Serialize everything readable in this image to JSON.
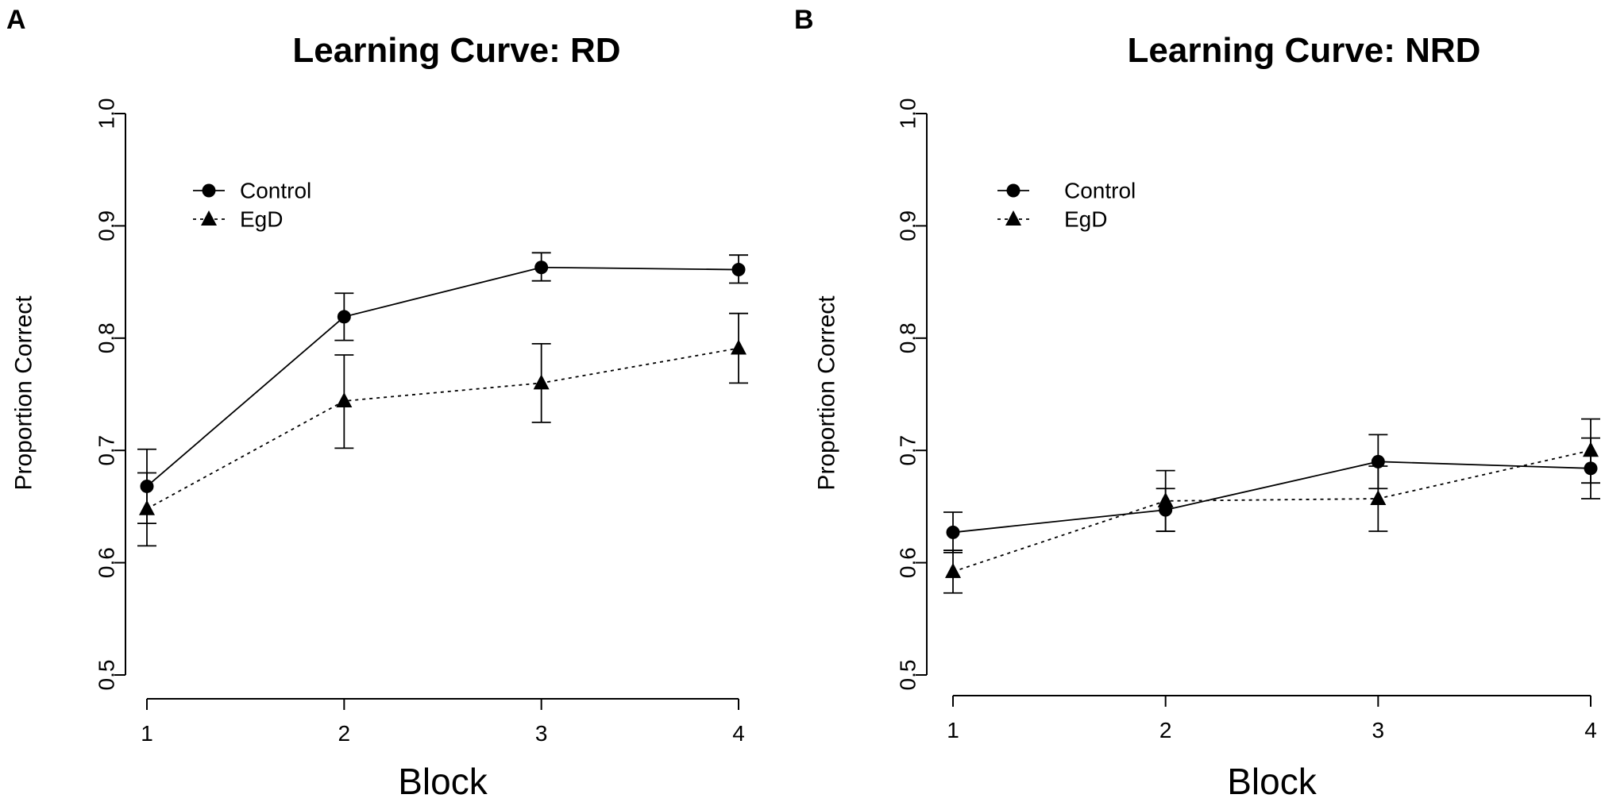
{
  "chart_data": [
    {
      "panel": "A",
      "type": "line",
      "title": "Learning Curve: RD",
      "xlabel": "Block",
      "ylabel": "Proportion Correct",
      "x": [
        1,
        2,
        3,
        4
      ],
      "x_ticks": [
        "1",
        "2",
        "3",
        "4"
      ],
      "ylim": [
        0.5,
        1.0
      ],
      "y_ticks": [
        "0.5",
        "0.6",
        "0.7",
        "0.8",
        "0.9",
        "1.0"
      ],
      "legend_position": "top-left",
      "series": [
        {
          "name": "Control",
          "marker": "circle",
          "line": "solid",
          "values": [
            0.668,
            0.819,
            0.863,
            0.861
          ],
          "err_low": [
            0.635,
            0.798,
            0.851,
            0.849
          ],
          "err_high": [
            0.701,
            0.84,
            0.876,
            0.874
          ]
        },
        {
          "name": "EgD",
          "marker": "triangle",
          "line": "dotted",
          "values": [
            0.648,
            0.744,
            0.76,
            0.791
          ],
          "err_low": [
            0.615,
            0.702,
            0.725,
            0.76
          ],
          "err_high": [
            0.68,
            0.785,
            0.795,
            0.822
          ]
        }
      ]
    },
    {
      "panel": "B",
      "type": "line",
      "title": "Learning Curve: NRD",
      "xlabel": "Block",
      "ylabel": "Proportion Correct",
      "x": [
        1,
        2,
        3,
        4
      ],
      "x_ticks": [
        "1",
        "2",
        "3",
        "4"
      ],
      "ylim": [
        0.5,
        1.0
      ],
      "y_ticks": [
        "0.5",
        "0.6",
        "0.7",
        "0.8",
        "0.9",
        "1.0"
      ],
      "legend_position": "top-left",
      "series": [
        {
          "name": "Control",
          "marker": "circle",
          "line": "solid",
          "values": [
            0.627,
            0.647,
            0.69,
            0.684
          ],
          "err_low": [
            0.609,
            0.628,
            0.666,
            0.657
          ],
          "err_high": [
            0.645,
            0.666,
            0.714,
            0.711
          ]
        },
        {
          "name": "EgD",
          "marker": "triangle",
          "line": "dotted",
          "values": [
            0.592,
            0.655,
            0.657,
            0.7
          ],
          "err_low": [
            0.573,
            0.628,
            0.628,
            0.671
          ],
          "err_high": [
            0.611,
            0.682,
            0.686,
            0.728
          ]
        }
      ]
    }
  ]
}
